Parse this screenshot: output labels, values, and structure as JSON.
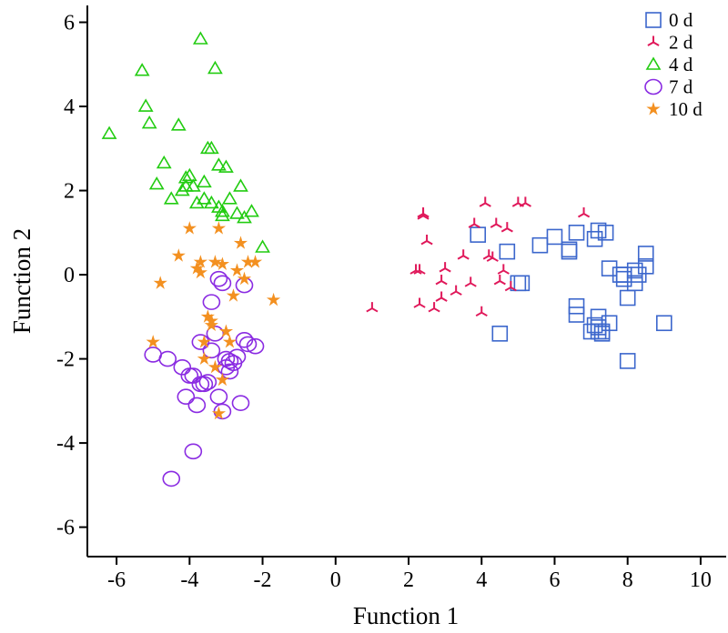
{
  "chart_data": {
    "type": "scatter",
    "title": "",
    "xlabel": "Function 1",
    "ylabel": "Function 2",
    "xlim": [
      -6.8,
      10.7
    ],
    "ylim": [
      -6.7,
      6.4
    ],
    "xticks": [
      -6,
      -4,
      -2,
      0,
      2,
      4,
      6,
      8,
      10
    ],
    "xtick_labels": [
      "-6",
      "-4",
      "-2",
      "0",
      "2",
      "4",
      "6",
      "8",
      "10"
    ],
    "yticks": [
      -6,
      -4,
      -2,
      0,
      2,
      4,
      6
    ],
    "ytick_labels": [
      "-6",
      "-4",
      "-2",
      "0",
      "2",
      "4",
      "6"
    ],
    "grid": false,
    "legend_position": "top-right",
    "series": [
      {
        "name": "0 d",
        "marker": "square",
        "color": "#3b66cc",
        "x": [
          3.9,
          4.7,
          4.5,
          5.0,
          5.1,
          5.6,
          6.0,
          6.4,
          6.4,
          6.6,
          6.6,
          6.6,
          7.1,
          7.2,
          7.4,
          7.5,
          7.2,
          7.1,
          7.2,
          7.3,
          7.5,
          7.8,
          7.9,
          8.0,
          8.2,
          8.3,
          8.5,
          8.5,
          8.2,
          8.0,
          9.0,
          7.9,
          7.2,
          7.0,
          7.3
        ],
        "y": [
          0.95,
          0.55,
          -1.4,
          -0.2,
          -0.2,
          0.7,
          0.9,
          0.55,
          0.6,
          1.0,
          -0.75,
          -0.95,
          0.85,
          1.05,
          1.0,
          0.15,
          -1.0,
          -1.2,
          -1.35,
          -1.35,
          -1.15,
          0.0,
          -0.1,
          -0.55,
          0.1,
          0.0,
          0.5,
          0.2,
          -0.2,
          -2.05,
          -1.15,
          0.0,
          -1.25,
          -1.35,
          -1.4
        ]
      },
      {
        "name": "2 d",
        "marker": "tri-star",
        "color": "#e0185a",
        "x": [
          1.0,
          2.2,
          2.3,
          2.4,
          2.5,
          2.3,
          2.4,
          2.7,
          2.9,
          3.0,
          3.3,
          3.5,
          3.7,
          3.8,
          4.0,
          4.1,
          4.2,
          4.3,
          4.4,
          4.5,
          4.6,
          4.7,
          4.8,
          5.0,
          5.2,
          6.8,
          2.9
        ],
        "y": [
          -0.8,
          0.1,
          0.1,
          1.45,
          0.8,
          -0.7,
          1.4,
          -0.8,
          -0.55,
          0.15,
          -0.4,
          0.45,
          -0.2,
          1.2,
          -0.9,
          1.7,
          0.45,
          0.4,
          1.2,
          -0.15,
          0.1,
          1.1,
          -0.3,
          1.7,
          1.7,
          1.45,
          -0.15
        ]
      },
      {
        "name": "4 d",
        "marker": "triangle",
        "color": "#22cc11",
        "x": [
          -6.2,
          -5.3,
          -5.1,
          -5.2,
          -4.9,
          -4.7,
          -4.5,
          -4.3,
          -4.2,
          -4.1,
          -4.0,
          -3.9,
          -3.8,
          -3.7,
          -3.6,
          -3.5,
          -3.4,
          -3.3,
          -3.2,
          -3.1,
          -3.0,
          -2.9,
          -2.7,
          -2.6,
          -2.5,
          -2.3,
          -2.0,
          -3.4,
          -3.6,
          -3.2,
          -3.1,
          -4.1
        ],
        "y": [
          3.35,
          4.85,
          3.6,
          4.0,
          2.15,
          2.65,
          1.8,
          3.55,
          2.0,
          2.3,
          2.35,
          2.1,
          1.7,
          5.6,
          2.2,
          3.0,
          1.7,
          4.9,
          2.6,
          1.5,
          2.55,
          1.8,
          1.45,
          2.1,
          1.35,
          1.5,
          0.65,
          3.0,
          1.8,
          1.6,
          1.4,
          2.1
        ]
      },
      {
        "name": "7 d",
        "marker": "circle",
        "color": "#8a2be2",
        "x": [
          -5.0,
          -4.6,
          -4.2,
          -4.1,
          -4.0,
          -3.9,
          -3.8,
          -3.7,
          -3.6,
          -3.5,
          -3.4,
          -3.3,
          -3.2,
          -3.1,
          -3.0,
          -2.9,
          -2.8,
          -2.7,
          -2.6,
          -2.5,
          -2.4,
          -2.2,
          -4.5,
          -3.9,
          -3.4,
          -3.2,
          -3.1,
          -2.5,
          -3.7,
          -2.9,
          -3.0
        ],
        "y": [
          -1.9,
          -2.0,
          -2.2,
          -2.9,
          -2.4,
          -4.2,
          -3.1,
          -1.6,
          -2.6,
          -2.55,
          -1.8,
          -1.4,
          -2.9,
          -3.25,
          -2.0,
          -2.3,
          -2.1,
          -1.95,
          -3.05,
          -1.55,
          -1.65,
          -1.7,
          -4.85,
          -2.4,
          -0.65,
          -0.1,
          -0.2,
          -0.25,
          -2.6,
          -2.05,
          -2.2
        ]
      },
      {
        "name": "10 d",
        "marker": "star",
        "color": "#f39020",
        "x": [
          -5.0,
          -4.8,
          -4.3,
          -4.0,
          -3.8,
          -3.7,
          -3.6,
          -3.5,
          -3.4,
          -3.3,
          -3.2,
          -3.1,
          -3.0,
          -2.9,
          -2.8,
          -2.7,
          -2.6,
          -2.5,
          -2.4,
          -2.2,
          -1.7,
          -3.2,
          -3.4,
          -3.7,
          -3.3,
          -3.6,
          -3.1
        ],
        "y": [
          -1.6,
          -0.2,
          0.45,
          1.1,
          0.15,
          0.3,
          -2.0,
          -1.0,
          -1.1,
          -2.2,
          1.1,
          0.25,
          -1.35,
          -1.6,
          -0.5,
          0.1,
          0.75,
          -0.1,
          0.3,
          0.3,
          -0.6,
          -3.3,
          -1.2,
          0.05,
          0.3,
          -1.6,
          -2.5
        ]
      }
    ]
  }
}
